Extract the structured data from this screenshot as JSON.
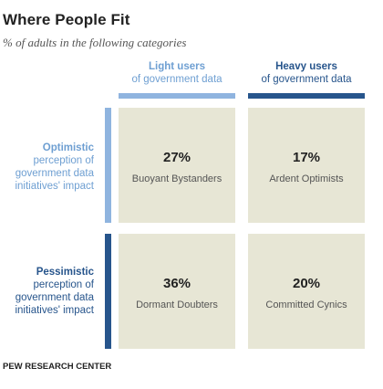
{
  "title": "Where People Fit",
  "subtitle": "% of adults in the following categories",
  "columns": [
    {
      "label": "Light users",
      "sublabel": "of government data",
      "color": "#8fb4df",
      "text_color": "#6e9fd2"
    },
    {
      "label": "Heavy users",
      "sublabel": "of government data",
      "color": "#27558c",
      "text_color": "#27558c"
    }
  ],
  "rows": [
    {
      "label": "Optimistic",
      "lines": [
        "perception of",
        "government data",
        "initiatives' impact"
      ],
      "color": "#8fb4df",
      "text_color": "#6e9fd2"
    },
    {
      "label": "Pessimistic",
      "lines": [
        "perception of",
        "government data",
        "initiatives' impact"
      ],
      "color": "#27558c",
      "text_color": "#27558c"
    }
  ],
  "chart_data": {
    "type": "table",
    "title": "Where People Fit",
    "subtitle": "% of adults in the following categories",
    "columns": [
      "Light users of government data",
      "Heavy users of government data"
    ],
    "rows": [
      "Optimistic perception of government data initiatives' impact",
      "Pessimistic perception of government data initiatives' impact"
    ],
    "cells": [
      [
        {
          "value": 27,
          "label": "27%",
          "name": "Buoyant Bystanders"
        },
        {
          "value": 17,
          "label": "17%",
          "name": "Ardent Optimists"
        }
      ],
      [
        {
          "value": 36,
          "label": "36%",
          "name": "Dormant Doubters"
        },
        {
          "value": 20,
          "label": "20%",
          "name": "Committed Cynics"
        }
      ]
    ]
  },
  "source": "PEW RESEARCH CENTER"
}
